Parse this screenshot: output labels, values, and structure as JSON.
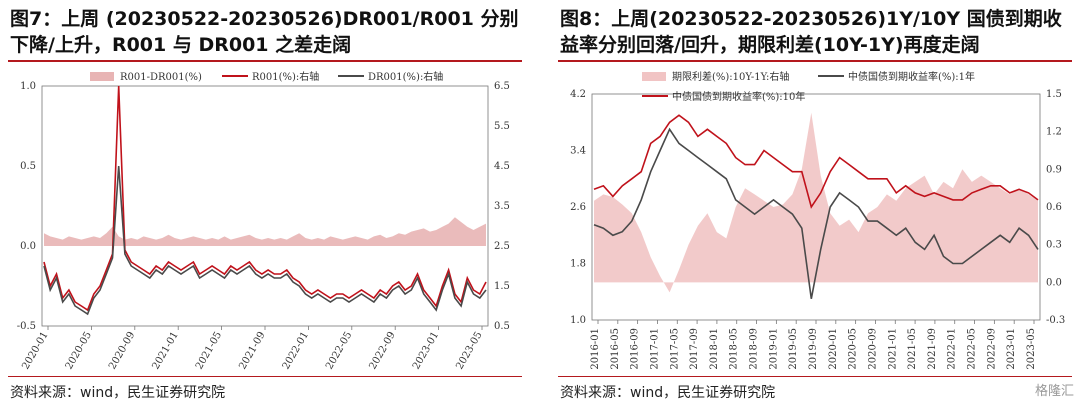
{
  "source_label": "资料来源：wind，民生证券研究院",
  "watermark": "格隆汇",
  "chart_data": [
    {
      "type": "line",
      "title": "图7：上周 (20230522-20230526)DR001/R001  分别下降/上升，R001 与 DR001 之差走阔",
      "legend": [
        "R001-DR001(%)",
        "R001(%):右轴",
        "DR001(%):右轴"
      ],
      "x_ticks": [
        "2020-01",
        "2020-05",
        "2020-09",
        "2021-01",
        "2021-05",
        "2021-09",
        "2022-01",
        "2022-05",
        "2022-09",
        "2023-01",
        "2023-05"
      ],
      "left_axis": {
        "ticks": [
          "1.0",
          "0.5",
          "0.0",
          "-0.5"
        ],
        "range": [
          -0.5,
          1.0
        ]
      },
      "right_axis": {
        "ticks": [
          "6.5",
          "5.5",
          "4.5",
          "3.5",
          "2.5",
          "1.5",
          "0.5"
        ],
        "range": [
          0.5,
          6.5
        ]
      },
      "series": [
        {
          "name": "R001-DR001(%)",
          "axis": "left",
          "type": "area",
          "values": [
            0.08,
            0.06,
            0.05,
            0.04,
            0.06,
            0.05,
            0.04,
            0.05,
            0.06,
            0.05,
            0.08,
            0.12,
            0.06,
            0.04,
            0.05,
            0.04,
            0.06,
            0.05,
            0.04,
            0.05,
            0.07,
            0.05,
            0.04,
            0.05,
            0.06,
            0.05,
            0.04,
            0.05,
            0.04,
            0.06,
            0.04,
            0.05,
            0.06,
            0.07,
            0.05,
            0.04,
            0.05,
            0.04,
            0.05,
            0.04,
            0.06,
            0.08,
            0.05,
            0.04,
            0.05,
            0.04,
            0.06,
            0.05,
            0.04,
            0.05,
            0.06,
            0.05,
            0.04,
            0.06,
            0.07,
            0.05,
            0.06,
            0.08,
            0.07,
            0.09,
            0.1,
            0.11,
            0.09,
            0.1,
            0.12,
            0.14,
            0.18,
            0.15,
            0.12,
            0.1,
            0.12,
            0.14
          ]
        },
        {
          "name": "R001(%):右轴",
          "axis": "right",
          "type": "line",
          "values": [
            2.1,
            1.5,
            1.8,
            1.2,
            1.4,
            1.1,
            1.0,
            0.9,
            1.3,
            1.5,
            1.9,
            2.3,
            6.5,
            2.4,
            2.1,
            2.0,
            1.9,
            1.8,
            2.0,
            1.9,
            2.1,
            2.0,
            1.9,
            2.0,
            2.1,
            1.8,
            1.9,
            2.0,
            1.9,
            1.8,
            2.0,
            1.9,
            2.0,
            2.1,
            1.9,
            1.8,
            1.9,
            1.8,
            1.8,
            1.9,
            1.7,
            1.6,
            1.4,
            1.3,
            1.4,
            1.3,
            1.2,
            1.3,
            1.3,
            1.2,
            1.3,
            1.4,
            1.3,
            1.2,
            1.4,
            1.3,
            1.5,
            1.6,
            1.4,
            1.5,
            1.8,
            1.4,
            1.2,
            1.0,
            1.5,
            1.9,
            1.3,
            1.1,
            1.7,
            1.4,
            1.3,
            1.6
          ]
        },
        {
          "name": "DR001(%):右轴",
          "axis": "right",
          "type": "line",
          "values": [
            2.0,
            1.4,
            1.7,
            1.1,
            1.3,
            1.0,
            0.9,
            0.8,
            1.2,
            1.4,
            1.8,
            2.2,
            4.5,
            2.3,
            2.0,
            1.9,
            1.8,
            1.7,
            1.9,
            1.8,
            2.0,
            1.9,
            1.8,
            1.9,
            2.0,
            1.7,
            1.8,
            1.9,
            1.8,
            1.7,
            1.9,
            1.8,
            1.9,
            2.0,
            1.8,
            1.7,
            1.8,
            1.7,
            1.7,
            1.8,
            1.6,
            1.5,
            1.3,
            1.2,
            1.3,
            1.2,
            1.1,
            1.2,
            1.2,
            1.1,
            1.2,
            1.3,
            1.2,
            1.1,
            1.3,
            1.2,
            1.4,
            1.5,
            1.3,
            1.4,
            1.7,
            1.3,
            1.1,
            0.9,
            1.4,
            1.8,
            1.2,
            1.0,
            1.6,
            1.3,
            1.2,
            1.4
          ]
        }
      ]
    },
    {
      "type": "line",
      "title": "图8：上周(20230522-20230526)1Y/10Y  国债到期收益率分别回落/回升，期限利差(10Y-1Y)再度走阔",
      "legend": [
        "期限利差(%):10Y-1Y:右轴",
        "中债国债到期收益率(%):1年",
        "中债国债到期收益率(%):10年"
      ],
      "x_ticks": [
        "2016-01",
        "2016-05",
        "2016-09",
        "2017-01",
        "2017-05",
        "2017-09",
        "2018-01",
        "2018-05",
        "2018-09",
        "2019-01",
        "2019-05",
        "2019-09",
        "2020-01",
        "2020-05",
        "2020-09",
        "2021-01",
        "2021-05",
        "2021-09",
        "2022-01",
        "2022-05",
        "2022-09",
        "2023-01",
        "2023-05"
      ],
      "left_axis": {
        "ticks": [
          "4.2",
          "3.4",
          "2.6",
          "1.8",
          "1.0"
        ],
        "range": [
          1.0,
          4.2
        ]
      },
      "right_axis": {
        "ticks": [
          "1.5",
          "1.2",
          "0.9",
          "0.6",
          "0.3",
          "0.0",
          "-0.3"
        ],
        "range": [
          -0.3,
          1.5
        ]
      },
      "series": [
        {
          "name": "期限利差(%):10Y-1Y:右轴",
          "axis": "right",
          "type": "area",
          "values": [
            0.65,
            0.7,
            0.68,
            0.62,
            0.55,
            0.4,
            0.2,
            0.05,
            -0.08,
            0.1,
            0.3,
            0.45,
            0.55,
            0.4,
            0.35,
            0.6,
            0.75,
            0.7,
            0.65,
            0.6,
            0.62,
            0.7,
            0.9,
            1.35,
            0.85,
            0.55,
            0.45,
            0.5,
            0.4,
            0.55,
            0.6,
            0.7,
            0.65,
            0.75,
            0.8,
            0.85,
            0.7,
            0.8,
            0.75,
            0.9,
            0.8,
            0.85,
            0.8,
            0.75,
            0.7,
            0.75,
            0.7,
            0.65
          ]
        },
        {
          "name": "中债国债到期收益率(%):1年",
          "axis": "left",
          "type": "line",
          "values": [
            2.35,
            2.3,
            2.2,
            2.25,
            2.4,
            2.7,
            3.1,
            3.4,
            3.7,
            3.5,
            3.4,
            3.3,
            3.2,
            3.1,
            3.0,
            2.7,
            2.6,
            2.5,
            2.6,
            2.7,
            2.6,
            2.5,
            2.3,
            1.3,
            2.0,
            2.6,
            2.8,
            2.7,
            2.6,
            2.4,
            2.4,
            2.3,
            2.2,
            2.3,
            2.1,
            2.0,
            2.2,
            1.9,
            1.8,
            1.8,
            1.9,
            2.0,
            2.1,
            2.2,
            2.1,
            2.3,
            2.2,
            2.0
          ]
        },
        {
          "name": "中债国债到期收益率(%):10年",
          "axis": "left",
          "type": "line",
          "values": [
            2.85,
            2.9,
            2.75,
            2.9,
            3.0,
            3.1,
            3.5,
            3.6,
            3.8,
            3.9,
            3.8,
            3.6,
            3.7,
            3.6,
            3.5,
            3.3,
            3.2,
            3.2,
            3.4,
            3.3,
            3.2,
            3.1,
            3.1,
            2.6,
            2.8,
            3.1,
            3.3,
            3.2,
            3.1,
            3.0,
            3.0,
            3.0,
            2.8,
            2.9,
            2.8,
            2.75,
            2.8,
            2.75,
            2.7,
            2.7,
            2.8,
            2.85,
            2.9,
            2.9,
            2.8,
            2.85,
            2.8,
            2.7
          ]
        }
      ]
    }
  ]
}
